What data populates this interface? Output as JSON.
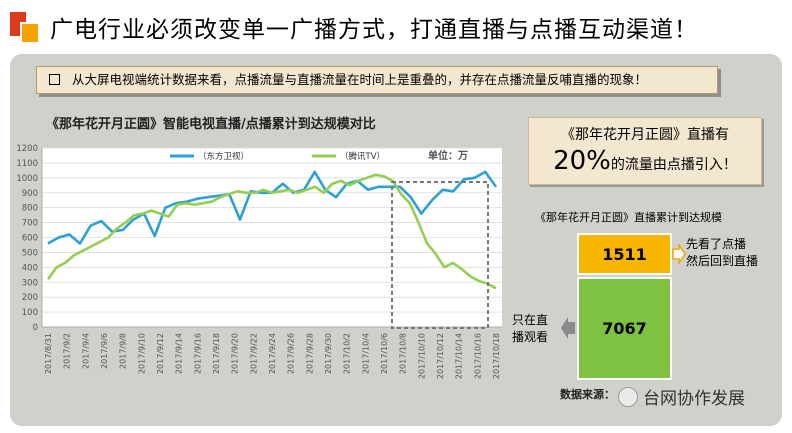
{
  "header": {
    "title": "广电行业必须改变单一广播方式，打通直播与点播互动渠道！"
  },
  "note": "从大屏电视端统计数据来看，点播流量与直播流量在时间上是重叠的，并存在点播流量反哺直播的现象！",
  "callout": {
    "line1": "《那年花开月正圆》直播有",
    "pct": "20%",
    "line2": "的流量由点播引入！"
  },
  "bars": {
    "title": "《那年花开月正圆》直播累计到达规模",
    "top_value": "1511",
    "bottom_value": "7067",
    "top_label_1": "先看了点播",
    "top_label_2": "然后回到直播",
    "left_label_1": "只在直",
    "left_label_2": "播观看"
  },
  "source": "数据来源：",
  "watermark": "台网协作发展",
  "colors": {
    "series1": "#2e9fd8",
    "series2": "#92cf50",
    "bar_top": "#f7b500",
    "bar_bottom": "#7fc241",
    "panel": "#cfd2cb"
  },
  "chart_data": {
    "type": "line",
    "title": "《那年花开月正圆》智能电视直播/点播累计到达规模对比",
    "unit_label": "单位：万",
    "ylim": [
      0,
      1200
    ],
    "yticks": [
      0,
      100,
      200,
      300,
      400,
      500,
      600,
      700,
      800,
      900,
      1000,
      1100,
      1200
    ],
    "x_tick_labels": [
      "2017/8/31",
      "2017/9/2",
      "2017/9/4",
      "2017/9/6",
      "2017/9/8",
      "2017/9/10",
      "2017/9/12",
      "2017/9/14",
      "2017/9/16",
      "2017/9/18",
      "2017/9/20",
      "2017/9/22",
      "2017/9/24",
      "2017/9/26",
      "2017/9/28",
      "2017/9/30",
      "2017/10/2",
      "2017/10/4",
      "2017/10/6",
      "2017/10/8",
      "2017/10/10",
      "2017/10/12",
      "2017/10/14",
      "2017/10/16",
      "2017/10/18"
    ],
    "series": [
      {
        "name": "东方卫视",
        "values": [
          560,
          600,
          620,
          560,
          680,
          710,
          640,
          650,
          720,
          760,
          610,
          800,
          830,
          840,
          860,
          870,
          880,
          890,
          720,
          910,
          900,
          900,
          960,
          900,
          920,
          1040,
          920,
          870,
          960,
          980,
          920,
          940,
          940,
          940,
          870,
          760,
          850,
          920,
          910,
          990,
          1000,
          1040,
          940
        ]
      },
      {
        "name": "腾讯TV",
        "values": [
          320,
          400,
          430,
          480,
          510,
          540,
          570,
          600,
          660,
          700,
          750,
          760,
          780,
          760,
          740,
          820,
          830,
          820,
          830,
          840,
          870,
          890,
          910,
          900,
          900,
          920,
          900,
          910,
          920,
          900,
          920,
          940,
          900,
          960,
          980,
          950,
          980,
          1000,
          1020,
          1010,
          980,
          890,
          830,
          700,
          560,
          490,
          400,
          430,
          390,
          340,
          310,
          290,
          260
        ]
      }
    ]
  }
}
